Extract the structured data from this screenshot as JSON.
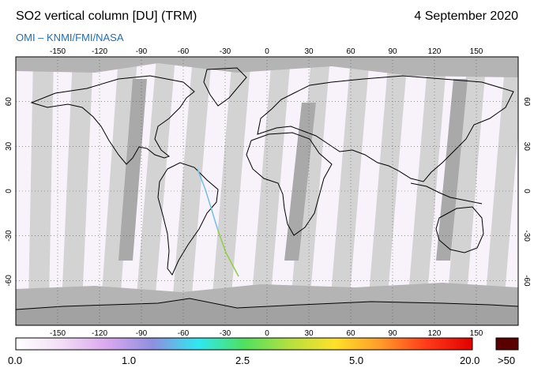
{
  "header": {
    "title": "SO2 vertical column [DU] (TRM)",
    "date": "4 September 2020",
    "credit": "OMI  –  KNMI/FMI/NASA"
  },
  "map": {
    "projection": "equirectangular",
    "lon_ticks": [
      -150,
      -120,
      -90,
      -60,
      -30,
      0,
      30,
      60,
      90,
      120,
      150
    ],
    "lat_ticks": [
      60,
      30,
      0,
      -30,
      -60
    ],
    "lon_tick_labels": [
      "-150",
      "-120",
      "-90",
      "-60",
      "-30",
      "0",
      "30",
      "60",
      "90",
      "120",
      "150"
    ],
    "lat_tick_labels": [
      "60",
      "30",
      "0",
      "-30",
      "-60"
    ],
    "grid": "dotted",
    "colors": {
      "background": "#f8f3fb",
      "swath_light": "#d3d3d3",
      "swath_dark": "#a9a9a9",
      "polar": "#b4b4b4",
      "coast": "#000000"
    }
  },
  "colorbar": {
    "labels": [
      "0.0",
      "1.0",
      "2.5",
      "5.0",
      "20.0",
      ">50"
    ],
    "colors": [
      "#ffffff",
      "#f3ddf6",
      "#d9a8ee",
      "#8f8fe0",
      "#2fe8f0",
      "#4fe060",
      "#b6e040",
      "#ffe02a",
      "#ff9a2a",
      "#ff3a1a",
      "#e00000"
    ],
    "overflow_color": "#5a0000"
  }
}
